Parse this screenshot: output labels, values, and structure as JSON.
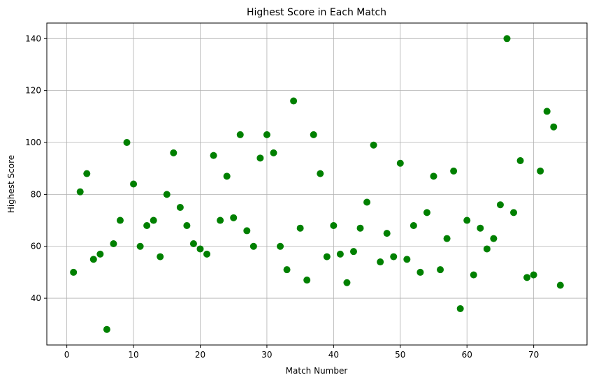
{
  "chart_data": {
    "type": "scatter",
    "title": "Highest Score in Each Match",
    "xlabel": "Match Number",
    "ylabel": "Highest Score",
    "xlim": [
      -3,
      78
    ],
    "ylim": [
      22,
      146
    ],
    "xticks": [
      0,
      10,
      20,
      30,
      40,
      50,
      60,
      70
    ],
    "yticks": [
      40,
      60,
      80,
      100,
      120,
      140
    ],
    "grid": true,
    "marker_color": "#008000",
    "points": [
      {
        "x": 1,
        "y": 50
      },
      {
        "x": 2,
        "y": 81
      },
      {
        "x": 3,
        "y": 88
      },
      {
        "x": 4,
        "y": 55
      },
      {
        "x": 5,
        "y": 57
      },
      {
        "x": 6,
        "y": 28
      },
      {
        "x": 7,
        "y": 61
      },
      {
        "x": 8,
        "y": 70
      },
      {
        "x": 9,
        "y": 100
      },
      {
        "x": 10,
        "y": 84
      },
      {
        "x": 11,
        "y": 60
      },
      {
        "x": 12,
        "y": 68
      },
      {
        "x": 13,
        "y": 70
      },
      {
        "x": 14,
        "y": 56
      },
      {
        "x": 15,
        "y": 80
      },
      {
        "x": 16,
        "y": 96
      },
      {
        "x": 17,
        "y": 75
      },
      {
        "x": 18,
        "y": 68
      },
      {
        "x": 19,
        "y": 61
      },
      {
        "x": 20,
        "y": 59
      },
      {
        "x": 21,
        "y": 57
      },
      {
        "x": 22,
        "y": 95
      },
      {
        "x": 23,
        "y": 70
      },
      {
        "x": 24,
        "y": 87
      },
      {
        "x": 25,
        "y": 71
      },
      {
        "x": 26,
        "y": 103
      },
      {
        "x": 27,
        "y": 66
      },
      {
        "x": 28,
        "y": 60
      },
      {
        "x": 29,
        "y": 94
      },
      {
        "x": 30,
        "y": 103
      },
      {
        "x": 31,
        "y": 96
      },
      {
        "x": 32,
        "y": 60
      },
      {
        "x": 33,
        "y": 51
      },
      {
        "x": 34,
        "y": 116
      },
      {
        "x": 35,
        "y": 67
      },
      {
        "x": 36,
        "y": 47
      },
      {
        "x": 37,
        "y": 103
      },
      {
        "x": 38,
        "y": 88
      },
      {
        "x": 39,
        "y": 56
      },
      {
        "x": 40,
        "y": 68
      },
      {
        "x": 41,
        "y": 57
      },
      {
        "x": 42,
        "y": 46
      },
      {
        "x": 43,
        "y": 58
      },
      {
        "x": 44,
        "y": 67
      },
      {
        "x": 45,
        "y": 77
      },
      {
        "x": 46,
        "y": 99
      },
      {
        "x": 47,
        "y": 54
      },
      {
        "x": 48,
        "y": 65
      },
      {
        "x": 49,
        "y": 56
      },
      {
        "x": 50,
        "y": 92
      },
      {
        "x": 51,
        "y": 55
      },
      {
        "x": 52,
        "y": 68
      },
      {
        "x": 53,
        "y": 50
      },
      {
        "x": 54,
        "y": 73
      },
      {
        "x": 55,
        "y": 87
      },
      {
        "x": 56,
        "y": 51
      },
      {
        "x": 57,
        "y": 63
      },
      {
        "x": 58,
        "y": 89
      },
      {
        "x": 59,
        "y": 36
      },
      {
        "x": 60,
        "y": 70
      },
      {
        "x": 61,
        "y": 49
      },
      {
        "x": 62,
        "y": 67
      },
      {
        "x": 63,
        "y": 59
      },
      {
        "x": 64,
        "y": 63
      },
      {
        "x": 65,
        "y": 76
      },
      {
        "x": 66,
        "y": 140
      },
      {
        "x": 67,
        "y": 73
      },
      {
        "x": 68,
        "y": 93
      },
      {
        "x": 69,
        "y": 48
      },
      {
        "x": 70,
        "y": 49
      },
      {
        "x": 71,
        "y": 89
      },
      {
        "x": 72,
        "y": 112
      },
      {
        "x": 73,
        "y": 106
      },
      {
        "x": 74,
        "y": 45
      }
    ]
  }
}
